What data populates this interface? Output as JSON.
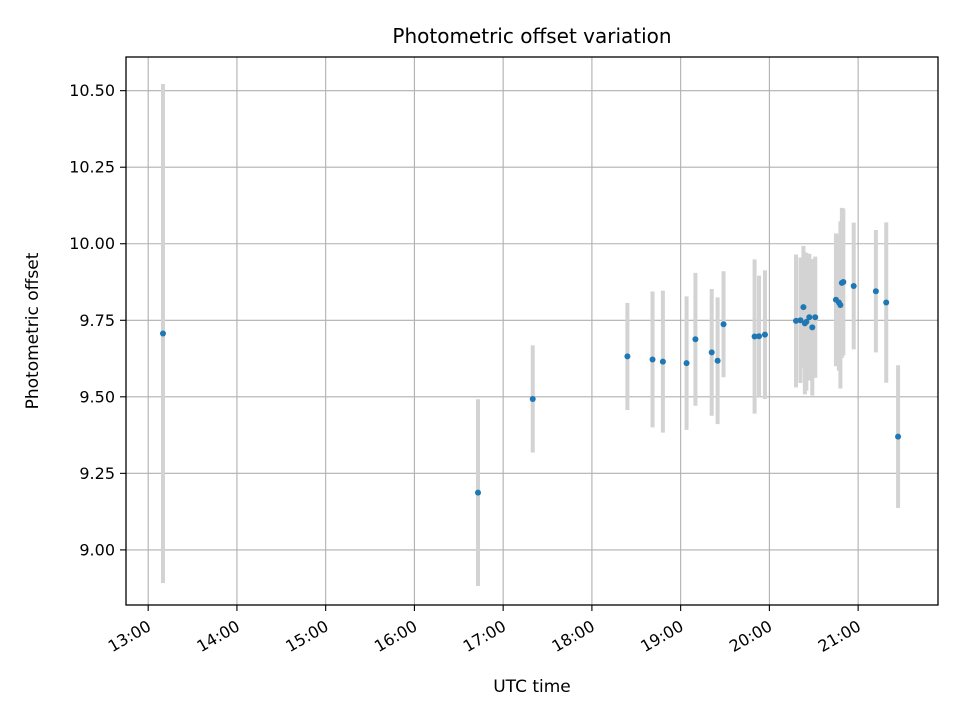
{
  "chart_data": {
    "type": "scatter",
    "title": "Photometric offset variation",
    "xlabel": "UTC time",
    "ylabel": "Photometric offset",
    "x_unit": "hours",
    "xlim": [
      12.75,
      21.9
    ],
    "ylim": [
      8.82,
      10.61
    ],
    "x_ticks": [
      {
        "value": 13,
        "label": "13:00"
      },
      {
        "value": 14,
        "label": "14:00"
      },
      {
        "value": 15,
        "label": "15:00"
      },
      {
        "value": 16,
        "label": "16:00"
      },
      {
        "value": 17,
        "label": "17:00"
      },
      {
        "value": 18,
        "label": "18:00"
      },
      {
        "value": 19,
        "label": "19:00"
      },
      {
        "value": 20,
        "label": "20:00"
      },
      {
        "value": 21,
        "label": "21:00"
      }
    ],
    "y_ticks": [
      {
        "value": 9.0,
        "label": "9.00"
      },
      {
        "value": 9.25,
        "label": "9.25"
      },
      {
        "value": 9.5,
        "label": "9.50"
      },
      {
        "value": 9.75,
        "label": "9.75"
      },
      {
        "value": 10.0,
        "label": "10.00"
      },
      {
        "value": 10.25,
        "label": "10.25"
      },
      {
        "value": 10.5,
        "label": "10.50"
      }
    ],
    "grid": true,
    "colors": {
      "marker": "#1f77b4",
      "errorbar": "#d3d3d3",
      "grid": "#b0b0b0"
    },
    "points": [
      {
        "x": "13:10",
        "y": 9.707,
        "err": 0.815
      },
      {
        "x": "16:43",
        "y": 9.187,
        "err": 0.305
      },
      {
        "x": "17:20",
        "y": 9.493,
        "err": 0.175
      },
      {
        "x": "18:24",
        "y": 9.632,
        "err": 0.175
      },
      {
        "x": "18:41",
        "y": 9.622,
        "err": 0.222
      },
      {
        "x": "18:48",
        "y": 9.615,
        "err": 0.232
      },
      {
        "x": "19:04",
        "y": 9.61,
        "err": 0.218
      },
      {
        "x": "19:10",
        "y": 9.688,
        "err": 0.217
      },
      {
        "x": "19:21",
        "y": 9.645,
        "err": 0.207
      },
      {
        "x": "19:25",
        "y": 9.618,
        "err": 0.207
      },
      {
        "x": "19:29",
        "y": 9.737,
        "err": 0.173
      },
      {
        "x": "19:50",
        "y": 9.697,
        "err": 0.252
      },
      {
        "x": "19:53",
        "y": 9.698,
        "err": 0.198
      },
      {
        "x": "19:57",
        "y": 9.703,
        "err": 0.21
      },
      {
        "x": "20:18",
        "y": 9.748,
        "err": 0.217
      },
      {
        "x": "20:21",
        "y": 9.75,
        "err": 0.205
      },
      {
        "x": "20:23",
        "y": 9.793,
        "err": 0.2
      },
      {
        "x": "20:24",
        "y": 9.74,
        "err": 0.232
      },
      {
        "x": "20:25",
        "y": 9.745,
        "err": 0.225
      },
      {
        "x": "20:27",
        "y": 9.76,
        "err": 0.207
      },
      {
        "x": "20:29",
        "y": 9.727,
        "err": 0.223
      },
      {
        "x": "20:31",
        "y": 9.76,
        "err": 0.198
      },
      {
        "x": "20:45",
        "y": 9.817,
        "err": 0.217
      },
      {
        "x": "20:47",
        "y": 9.808,
        "err": 0.223
      },
      {
        "x": "20:48",
        "y": 9.8,
        "err": 0.273
      },
      {
        "x": "20:49",
        "y": 9.872,
        "err": 0.245
      },
      {
        "x": "20:50",
        "y": 9.875,
        "err": 0.24
      },
      {
        "x": "20:57",
        "y": 9.862,
        "err": 0.207
      },
      {
        "x": "21:12",
        "y": 9.845,
        "err": 0.2
      },
      {
        "x": "21:19",
        "y": 9.808,
        "err": 0.262
      },
      {
        "x": "21:27",
        "y": 9.37,
        "err": 0.233
      }
    ]
  }
}
